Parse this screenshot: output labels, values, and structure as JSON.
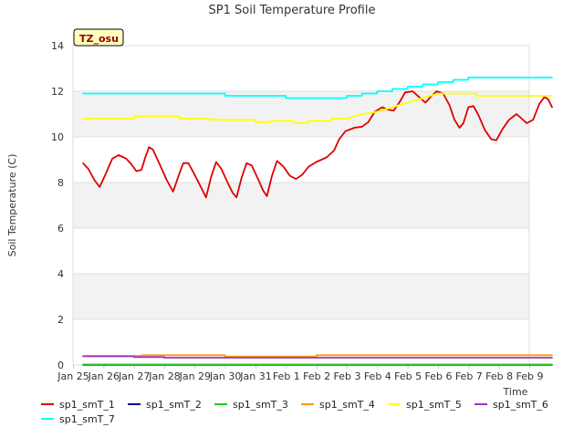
{
  "chart_data": {
    "type": "line",
    "title": "SP1 Soil Temperature Profile",
    "xlabel": "Time",
    "ylabel": "Soil Temperature (C)",
    "ylim": [
      0,
      14
    ],
    "xlim": [
      "2024-01-25",
      "2024-02-09"
    ],
    "yticks": [
      0,
      2,
      4,
      6,
      8,
      10,
      12,
      14
    ],
    "x_tick_labels": [
      "Jan 25",
      "Jan 26",
      "Jan 27",
      "Jan 28",
      "Jan 29",
      "Jan 30",
      "Jan 31",
      "Feb 1",
      "Feb 2",
      "Feb 3",
      "Feb 4",
      "Feb 5",
      "Feb 6",
      "Feb 7",
      "Feb 8",
      "Feb 9"
    ],
    "grid": true,
    "background_bands": true,
    "legend_placement": "bottom",
    "annotation": {
      "text": "TZ_osu",
      "background": "#ffffc0",
      "text_color": "#990000"
    },
    "series": [
      {
        "name": "sp1_smT_1",
        "color": "#dd0000",
        "points": [
          [
            "2024-01-25T08:00",
            8.85
          ],
          [
            "2024-01-25T12:00",
            8.6
          ],
          [
            "2024-01-25T17:00",
            8.1
          ],
          [
            "2024-01-25T21:00",
            7.8
          ],
          [
            "2024-01-26T02:00",
            8.4
          ],
          [
            "2024-01-26T07:00",
            9.05
          ],
          [
            "2024-01-26T12:00",
            9.2
          ],
          [
            "2024-01-26T18:00",
            9.05
          ],
          [
            "2024-01-26T22:00",
            8.8
          ],
          [
            "2024-01-27T02:00",
            8.5
          ],
          [
            "2024-01-27T06:00",
            8.55
          ],
          [
            "2024-01-27T09:00",
            9.1
          ],
          [
            "2024-01-27T12:00",
            9.55
          ],
          [
            "2024-01-27T15:00",
            9.45
          ],
          [
            "2024-01-27T20:00",
            8.85
          ],
          [
            "2024-01-28T02:00",
            8.1
          ],
          [
            "2024-01-28T07:00",
            7.6
          ],
          [
            "2024-01-28T11:00",
            8.25
          ],
          [
            "2024-01-28T15:00",
            8.85
          ],
          [
            "2024-01-28T19:00",
            8.85
          ],
          [
            "2024-01-28T23:00",
            8.45
          ],
          [
            "2024-01-29T04:00",
            7.9
          ],
          [
            "2024-01-29T09:00",
            7.35
          ],
          [
            "2024-01-29T13:00",
            8.25
          ],
          [
            "2024-01-29T17:00",
            8.9
          ],
          [
            "2024-01-29T21:00",
            8.6
          ],
          [
            "2024-01-30T02:00",
            8.0
          ],
          [
            "2024-01-30T06:00",
            7.55
          ],
          [
            "2024-01-30T09:00",
            7.35
          ],
          [
            "2024-01-30T13:00",
            8.2
          ],
          [
            "2024-01-30T17:00",
            8.85
          ],
          [
            "2024-01-30T21:00",
            8.75
          ],
          [
            "2024-01-31T02:00",
            8.15
          ],
          [
            "2024-01-31T06:00",
            7.65
          ],
          [
            "2024-01-31T09:00",
            7.4
          ],
          [
            "2024-01-31T13:00",
            8.3
          ],
          [
            "2024-01-31T17:00",
            8.95
          ],
          [
            "2024-01-31T22:00",
            8.7
          ],
          [
            "2024-02-01T03:00",
            8.3
          ],
          [
            "2024-02-01T08:00",
            8.15
          ],
          [
            "2024-02-01T13:00",
            8.35
          ],
          [
            "2024-02-01T18:00",
            8.7
          ],
          [
            "2024-02-02T00:00",
            8.9
          ],
          [
            "2024-02-02T08:00",
            9.1
          ],
          [
            "2024-02-02T14:00",
            9.4
          ],
          [
            "2024-02-02T18:00",
            9.9
          ],
          [
            "2024-02-02T23:00",
            10.25
          ],
          [
            "2024-02-03T06:00",
            10.4
          ],
          [
            "2024-02-03T12:00",
            10.45
          ],
          [
            "2024-02-03T17:00",
            10.65
          ],
          [
            "2024-02-03T22:00",
            11.1
          ],
          [
            "2024-02-04T04:00",
            11.3
          ],
          [
            "2024-02-04T08:00",
            11.2
          ],
          [
            "2024-02-04T13:00",
            11.15
          ],
          [
            "2024-02-04T18:00",
            11.55
          ],
          [
            "2024-02-04T22:00",
            11.95
          ],
          [
            "2024-02-05T04:00",
            12.0
          ],
          [
            "2024-02-05T09:00",
            11.75
          ],
          [
            "2024-02-05T14:00",
            11.5
          ],
          [
            "2024-02-05T19:00",
            11.8
          ],
          [
            "2024-02-05T23:00",
            12.0
          ],
          [
            "2024-02-06T04:00",
            11.9
          ],
          [
            "2024-02-06T09:00",
            11.4
          ],
          [
            "2024-02-06T13:00",
            10.75
          ],
          [
            "2024-02-06T17:00",
            10.4
          ],
          [
            "2024-02-06T20:00",
            10.6
          ],
          [
            "2024-02-07T00:00",
            11.3
          ],
          [
            "2024-02-07T04:00",
            11.35
          ],
          [
            "2024-02-07T08:00",
            10.95
          ],
          [
            "2024-02-07T13:00",
            10.3
          ],
          [
            "2024-02-07T18:00",
            9.9
          ],
          [
            "2024-02-07T22:00",
            9.85
          ],
          [
            "2024-02-08T03:00",
            10.35
          ],
          [
            "2024-02-08T08:00",
            10.75
          ],
          [
            "2024-02-08T14:00",
            11.0
          ],
          [
            "2024-02-08T18:00",
            10.8
          ],
          [
            "2024-02-08T22:00",
            10.6
          ],
          [
            "2024-02-09T03:00",
            10.75
          ],
          [
            "2024-02-09T08:00",
            11.45
          ],
          [
            "2024-02-09T12:00",
            11.75
          ],
          [
            "2024-02-09T15:00",
            11.65
          ],
          [
            "2024-02-09T18:00",
            11.3
          ]
        ]
      },
      {
        "name": "sp1_smT_2",
        "color": "#000099",
        "points": [
          [
            "2024-01-25T08:00",
            0.01
          ],
          [
            "2024-02-09T18:00",
            0.01
          ]
        ]
      },
      {
        "name": "sp1_smT_3",
        "color": "#22cc22",
        "points": [
          [
            "2024-01-25T08:00",
            0.02
          ],
          [
            "2024-02-09T18:00",
            0.02
          ]
        ]
      },
      {
        "name": "sp1_smT_4",
        "color": "#ff9900",
        "points": [
          [
            "2024-01-25T08:00",
            0.4
          ],
          [
            "2024-01-27T06:00",
            0.4
          ],
          [
            "2024-01-27T06:00",
            0.43
          ],
          [
            "2024-01-30T00:00",
            0.43
          ],
          [
            "2024-01-30T00:00",
            0.37
          ],
          [
            "2024-02-02T00:00",
            0.37
          ],
          [
            "2024-02-02T00:00",
            0.43
          ],
          [
            "2024-02-09T18:00",
            0.43
          ]
        ]
      },
      {
        "name": "sp1_smT_5",
        "color": "#ffff00",
        "points": [
          [
            "2024-01-25T08:00",
            10.8
          ],
          [
            "2024-01-27T00:00",
            10.8
          ],
          [
            "2024-01-27T00:00",
            10.9
          ],
          [
            "2024-01-28T12:00",
            10.9
          ],
          [
            "2024-01-28T12:00",
            10.8
          ],
          [
            "2024-01-29T12:00",
            10.8
          ],
          [
            "2024-01-29T12:00",
            10.75
          ],
          [
            "2024-01-31T00:00",
            10.75
          ],
          [
            "2024-01-31T00:00",
            10.65
          ],
          [
            "2024-01-31T12:00",
            10.65
          ],
          [
            "2024-01-31T12:00",
            10.7
          ],
          [
            "2024-02-01T06:00",
            10.7
          ],
          [
            "2024-02-01T06:00",
            10.6
          ],
          [
            "2024-02-01T18:00",
            10.6
          ],
          [
            "2024-02-01T18:00",
            10.7
          ],
          [
            "2024-02-02T12:00",
            10.7
          ],
          [
            "2024-02-02T12:00",
            10.8
          ],
          [
            "2024-02-03T00:00",
            10.8
          ],
          [
            "2024-02-03T12:00",
            11.0
          ],
          [
            "2024-02-04T00:00",
            11.1
          ],
          [
            "2024-02-04T12:00",
            11.3
          ],
          [
            "2024-02-05T00:00",
            11.5
          ],
          [
            "2024-02-05T12:00",
            11.7
          ],
          [
            "2024-02-06T00:00",
            11.9
          ],
          [
            "2024-02-07T06:00",
            11.9
          ],
          [
            "2024-02-07T06:00",
            11.8
          ],
          [
            "2024-02-09T18:00",
            11.8
          ]
        ]
      },
      {
        "name": "sp1_smT_6",
        "color": "#9933cc",
        "points": [
          [
            "2024-01-25T08:00",
            0.38
          ],
          [
            "2024-01-27T00:00",
            0.38
          ],
          [
            "2024-01-27T00:00",
            0.35
          ],
          [
            "2024-01-28T00:00",
            0.35
          ],
          [
            "2024-01-28T00:00",
            0.32
          ],
          [
            "2024-02-09T18:00",
            0.32
          ]
        ]
      },
      {
        "name": "sp1_smT_7",
        "color": "#00ffff",
        "points": [
          [
            "2024-01-25T08:00",
            11.9
          ],
          [
            "2024-01-30T00:00",
            11.9
          ],
          [
            "2024-01-30T00:00",
            11.8
          ],
          [
            "2024-02-01T00:00",
            11.8
          ],
          [
            "2024-02-01T00:00",
            11.7
          ],
          [
            "2024-02-03T00:00",
            11.7
          ],
          [
            "2024-02-03T00:00",
            11.8
          ],
          [
            "2024-02-03T12:00",
            11.8
          ],
          [
            "2024-02-03T12:00",
            11.9
          ],
          [
            "2024-02-04T00:00",
            11.9
          ],
          [
            "2024-02-04T00:00",
            12.0
          ],
          [
            "2024-02-04T12:00",
            12.0
          ],
          [
            "2024-02-04T12:00",
            12.1
          ],
          [
            "2024-02-05T00:00",
            12.1
          ],
          [
            "2024-02-05T00:00",
            12.2
          ],
          [
            "2024-02-05T12:00",
            12.2
          ],
          [
            "2024-02-05T12:00",
            12.3
          ],
          [
            "2024-02-06T00:00",
            12.3
          ],
          [
            "2024-02-06T00:00",
            12.4
          ],
          [
            "2024-02-06T12:00",
            12.4
          ],
          [
            "2024-02-06T12:00",
            12.5
          ],
          [
            "2024-02-07T00:00",
            12.5
          ],
          [
            "2024-02-07T00:00",
            12.6
          ],
          [
            "2024-02-09T18:00",
            12.6
          ]
        ]
      }
    ]
  }
}
